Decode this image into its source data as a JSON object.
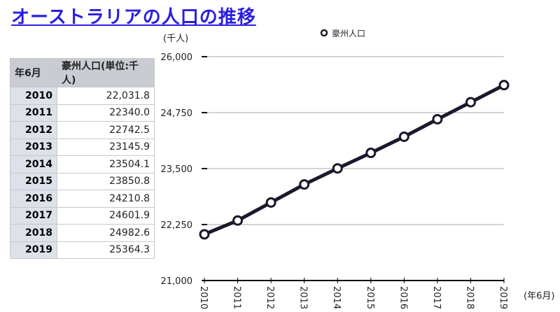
{
  "title": "オーストラリアの人口の推移",
  "table": {
    "headers": [
      "年6月",
      "豪州人口(単位:千人)"
    ],
    "rows": [
      [
        "2010",
        "22,031.8"
      ],
      [
        "2011",
        "22340.0"
      ],
      [
        "2012",
        "22742.5"
      ],
      [
        "2013",
        "23145.9"
      ],
      [
        "2014",
        "23504.1"
      ],
      [
        "2015",
        "23850.8"
      ],
      [
        "2016",
        "24210.8"
      ],
      [
        "2017",
        "24601.9"
      ],
      [
        "2018",
        "24982.6"
      ],
      [
        "2019",
        "25364.3"
      ]
    ]
  },
  "chart_data": {
    "type": "line",
    "x": [
      "2010",
      "2011",
      "2012",
      "2013",
      "2014",
      "2015",
      "2016",
      "2017",
      "2018",
      "2019"
    ],
    "series": [
      {
        "name": "豪州人口",
        "values": [
          22031.8,
          22340.0,
          22742.5,
          23145.9,
          23504.1,
          23850.8,
          24210.8,
          24601.9,
          24982.6,
          25364.3
        ],
        "color": "#1a1a2a"
      }
    ],
    "ylabel": "(千人)",
    "xlabel": "(年6月)",
    "ylim": [
      21000,
      26000
    ],
    "yticks": [
      "21,000",
      "22,250",
      "23,500",
      "24,750",
      "26,000"
    ],
    "grid": true,
    "legend": "top"
  }
}
